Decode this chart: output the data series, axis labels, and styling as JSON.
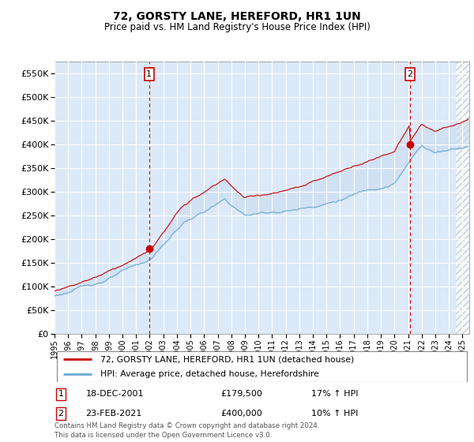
{
  "title": "72, GORSTY LANE, HEREFORD, HR1 1UN",
  "subtitle": "Price paid vs. HM Land Registry's House Price Index (HPI)",
  "hpi_label": "HPI: Average price, detached house, Herefordshire",
  "property_label": "72, GORSTY LANE, HEREFORD, HR1 1UN (detached house)",
  "footer": "Contains HM Land Registry data © Crown copyright and database right 2024.\nThis data is licensed under the Open Government Licence v3.0.",
  "sale1_date": "18-DEC-2001",
  "sale1_price": 179500,
  "sale1_note": "17% ↑ HPI",
  "sale2_date": "23-FEB-2021",
  "sale2_price": 400000,
  "sale2_note": "10% ↑ HPI",
  "sale1_year": 2001.96,
  "sale2_year": 2021.15,
  "ylim_min": 0,
  "ylim_max": 575000,
  "xlim_min": 1995.0,
  "xlim_max": 2025.5,
  "background_color": "#dce9f8",
  "hpi_color": "#6aaad4",
  "property_color": "#cc0000",
  "dashed_line_color": "#cc0000",
  "grid_color": "#ffffff",
  "fill_color": "#c8ddf0"
}
